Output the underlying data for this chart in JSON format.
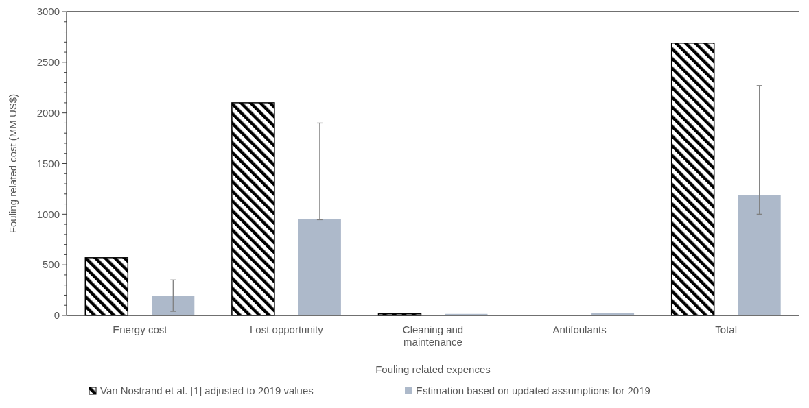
{
  "chart_data": {
    "type": "bar",
    "xlabel": "Fouling related expences",
    "ylabel": "Fouling related cost (MM US$)",
    "categories": [
      "Energy cost",
      "Lost opportunity",
      "Cleaning and maintenance",
      "Antifoulants",
      "Total"
    ],
    "series": [
      {
        "name": "Van Nostrand et al. [1] adjusted to 2019 values",
        "color": "#000000",
        "values": [
          570,
          2100,
          15,
          0,
          2690
        ]
      },
      {
        "name": "Estimation based on updated assumptions for 2019",
        "color": "#adb9ca",
        "values": [
          190,
          950,
          15,
          25,
          1190
        ],
        "errors": [
          [
            40,
            350
          ],
          [
            945,
            1900
          ],
          null,
          null,
          [
            1000,
            2270
          ]
        ]
      }
    ],
    "ylim": [
      0,
      3000
    ],
    "yticks": [
      0,
      {
        "value": 100,
        "label": null
      },
      {
        "value": 200,
        "label": null
      },
      {
        "value": 300,
        "label": null
      },
      {
        "value": 400,
        "label": null
      },
      500,
      {
        "value": 600,
        "label": null
      },
      {
        "value": 700,
        "label": null
      },
      {
        "value": 800,
        "label": null
      },
      {
        "value": 900,
        "label": null
      },
      1000,
      {
        "value": 1100,
        "label": null
      },
      {
        "value": 1200,
        "label": null
      },
      {
        "value": 1300,
        "label": null
      },
      {
        "value": 1400,
        "label": null
      },
      1500,
      {
        "value": 1600,
        "label": null
      },
      {
        "value": 1700,
        "label": null
      },
      {
        "value": 1800,
        "label": null
      },
      {
        "value": 1900,
        "label": null
      },
      2000,
      {
        "value": 2100,
        "label": null
      },
      {
        "value": 2200,
        "label": null
      },
      {
        "value": 2300,
        "label": null
      },
      {
        "value": 2400,
        "label": null
      },
      2500,
      {
        "value": 2600,
        "label": null
      },
      {
        "value": 2700,
        "label": null
      },
      {
        "value": 2800,
        "label": null
      },
      {
        "value": 2900,
        "label": null
      },
      3000
    ],
    "grid": false,
    "legend": "bottom"
  }
}
